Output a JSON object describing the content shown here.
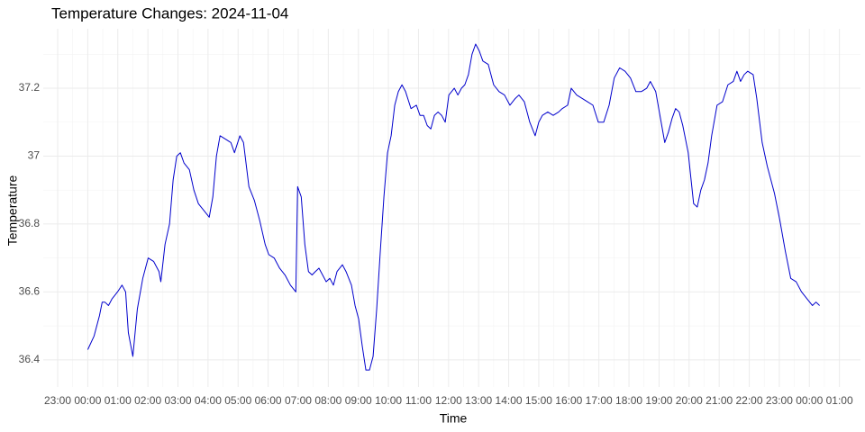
{
  "chart_data": {
    "type": "line",
    "title": "Temperature Changes: 2024-11-04",
    "xlabel": "Time",
    "ylabel": "Temperature",
    "grid": true,
    "minor_grid": true,
    "xlim": [
      -1.48,
      25.7
    ],
    "ylim": [
      36.32,
      37.375
    ],
    "xticks": [
      {
        "value": -1,
        "label": "23:00"
      },
      {
        "value": 0,
        "label": "00:00"
      },
      {
        "value": 1,
        "label": "01:00"
      },
      {
        "value": 2,
        "label": "02:00"
      },
      {
        "value": 3,
        "label": "03:00"
      },
      {
        "value": 4,
        "label": "04:00"
      },
      {
        "value": 5,
        "label": "05:00"
      },
      {
        "value": 6,
        "label": "06:00"
      },
      {
        "value": 7,
        "label": "07:00"
      },
      {
        "value": 8,
        "label": "08:00"
      },
      {
        "value": 9,
        "label": "09:00"
      },
      {
        "value": 10,
        "label": "10:00"
      },
      {
        "value": 11,
        "label": "11:00"
      },
      {
        "value": 12,
        "label": "12:00"
      },
      {
        "value": 13,
        "label": "13:00"
      },
      {
        "value": 14,
        "label": "14:00"
      },
      {
        "value": 15,
        "label": "15:00"
      },
      {
        "value": 16,
        "label": "16:00"
      },
      {
        "value": 17,
        "label": "17:00"
      },
      {
        "value": 18,
        "label": "18:00"
      },
      {
        "value": 19,
        "label": "19:00"
      },
      {
        "value": 20,
        "label": "20:00"
      },
      {
        "value": 21,
        "label": "21:00"
      },
      {
        "value": 22,
        "label": "22:00"
      },
      {
        "value": 23,
        "label": "23:00"
      },
      {
        "value": 24,
        "label": "00:00"
      },
      {
        "value": 25,
        "label": "01:00"
      }
    ],
    "yticks": [
      36.4,
      36.6,
      36.8,
      37.0,
      37.2
    ],
    "series": [
      {
        "name": "Temperature",
        "color": "#0000cc",
        "x": [
          0,
          0.21,
          0.39,
          0.48,
          0.57,
          0.69,
          0.81,
          0.99,
          1.14,
          1.26,
          1.35,
          1.5,
          1.65,
          1.83,
          2.01,
          2.19,
          2.37,
          2.43,
          2.57,
          2.72,
          2.84,
          2.96,
          3.08,
          3.2,
          3.38,
          3.53,
          3.68,
          3.86,
          4.04,
          4.16,
          4.28,
          4.4,
          4.58,
          4.76,
          4.88,
          5.06,
          5.18,
          5.36,
          5.54,
          5.72,
          5.9,
          6.02,
          6.2,
          6.38,
          6.56,
          6.74,
          6.92,
          6.98,
          7.1,
          7.22,
          7.34,
          7.46,
          7.57,
          7.69,
          7.81,
          7.93,
          8.05,
          8.17,
          8.29,
          8.47,
          8.59,
          8.77,
          8.89,
          9.01,
          9.13,
          9.25,
          9.37,
          9.49,
          9.61,
          9.73,
          9.85,
          9.97,
          10.09,
          10.21,
          10.33,
          10.45,
          10.57,
          10.75,
          10.93,
          11.05,
          11.17,
          11.29,
          11.41,
          11.53,
          11.65,
          11.77,
          11.89,
          12.01,
          12.19,
          12.31,
          12.43,
          12.54,
          12.66,
          12.78,
          12.9,
          13.02,
          13.14,
          13.32,
          13.5,
          13.68,
          13.86,
          14.04,
          14.22,
          14.34,
          14.52,
          14.7,
          14.88,
          15.0,
          15.12,
          15.3,
          15.48,
          15.66,
          15.78,
          15.96,
          16.08,
          16.26,
          16.44,
          16.62,
          16.8,
          16.98,
          17.16,
          17.34,
          17.51,
          17.69,
          17.87,
          18.05,
          18.23,
          18.41,
          18.59,
          18.71,
          18.89,
          19.07,
          19.19,
          19.31,
          19.43,
          19.55,
          19.67,
          19.79,
          19.97,
          20.15,
          20.27,
          20.39,
          20.51,
          20.63,
          20.75,
          20.93,
          21.11,
          21.29,
          21.47,
          21.59,
          21.71,
          21.83,
          21.95,
          22.13,
          22.25,
          22.43,
          22.6,
          22.72,
          22.84,
          23.02,
          23.2,
          23.38,
          23.56,
          23.74,
          23.92,
          24.1,
          24.22,
          24.34
        ],
        "values": [
          36.43,
          36.47,
          36.53,
          36.57,
          36.57,
          36.56,
          36.58,
          36.6,
          36.62,
          36.6,
          36.48,
          36.41,
          36.55,
          36.64,
          36.7,
          36.69,
          36.66,
          36.63,
          36.74,
          36.8,
          36.93,
          37.0,
          37.01,
          36.98,
          36.96,
          36.9,
          36.86,
          36.84,
          36.82,
          36.88,
          37.0,
          37.06,
          37.05,
          37.04,
          37.01,
          37.06,
          37.04,
          36.91,
          36.87,
          36.81,
          36.74,
          36.71,
          36.7,
          36.67,
          36.65,
          36.62,
          36.6,
          36.91,
          36.88,
          36.74,
          36.66,
          36.65,
          36.66,
          36.67,
          36.65,
          36.63,
          36.64,
          36.62,
          36.66,
          36.68,
          36.66,
          36.62,
          36.56,
          36.52,
          36.44,
          36.37,
          36.37,
          36.41,
          36.55,
          36.72,
          36.88,
          37.01,
          37.06,
          37.15,
          37.19,
          37.21,
          37.19,
          37.14,
          37.15,
          37.12,
          37.12,
          37.09,
          37.08,
          37.12,
          37.13,
          37.12,
          37.1,
          37.18,
          37.2,
          37.18,
          37.2,
          37.21,
          37.24,
          37.3,
          37.33,
          37.31,
          37.28,
          37.27,
          37.21,
          37.19,
          37.18,
          37.15,
          37.17,
          37.18,
          37.16,
          37.1,
          37.06,
          37.1,
          37.12,
          37.13,
          37.12,
          37.13,
          37.14,
          37.15,
          37.2,
          37.18,
          37.17,
          37.16,
          37.15,
          37.1,
          37.1,
          37.15,
          37.23,
          37.26,
          37.25,
          37.23,
          37.19,
          37.19,
          37.2,
          37.22,
          37.19,
          37.1,
          37.04,
          37.07,
          37.11,
          37.14,
          37.13,
          37.09,
          37.01,
          36.86,
          36.85,
          36.9,
          36.93,
          36.98,
          37.06,
          37.15,
          37.16,
          37.21,
          37.22,
          37.25,
          37.22,
          37.24,
          37.25,
          37.24,
          37.17,
          37.04,
          36.97,
          36.93,
          36.89,
          36.81,
          36.72,
          36.64,
          36.63,
          36.6,
          36.58,
          36.56,
          36.57,
          36.56
        ]
      }
    ]
  }
}
